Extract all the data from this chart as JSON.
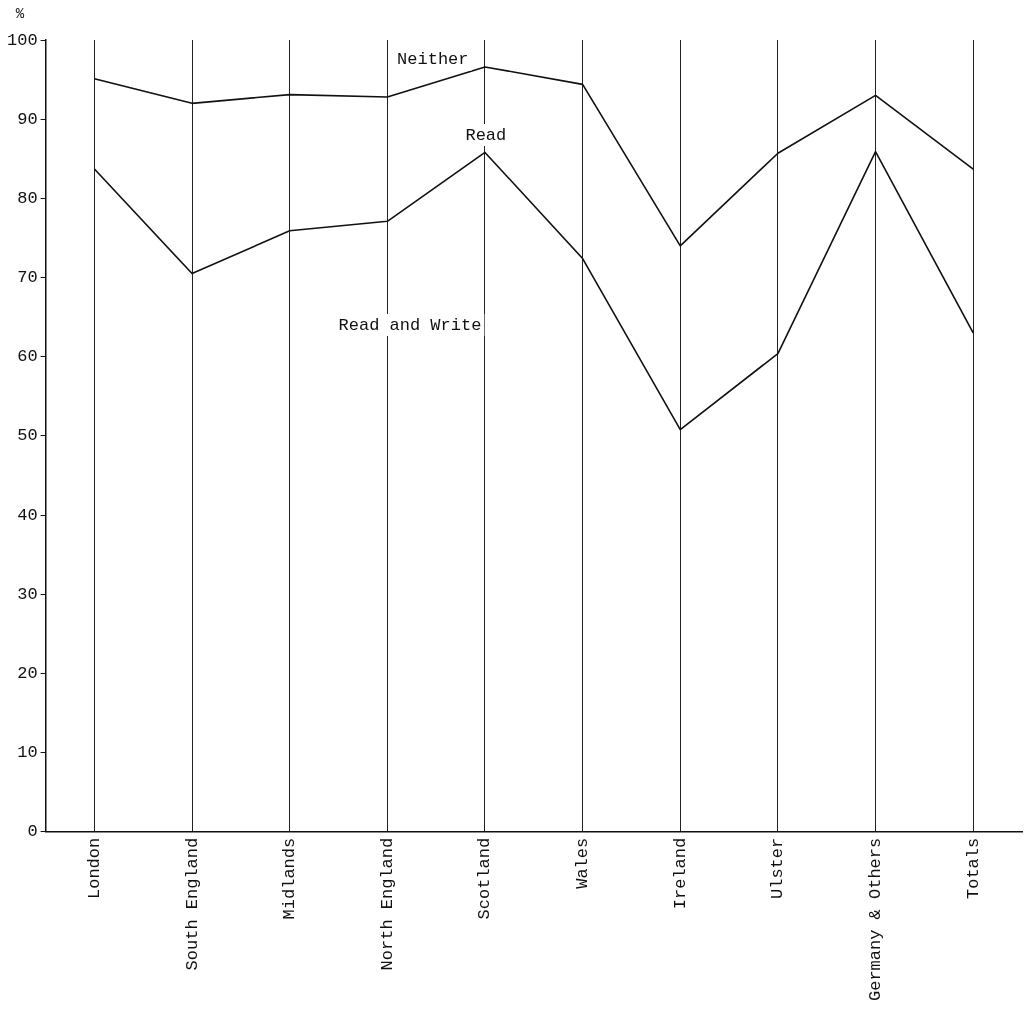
{
  "chart_data": {
    "type": "line",
    "ylabel": "%",
    "categories": [
      "London",
      "South England",
      "Midlands",
      "North England",
      "Scotland",
      "Wales",
      "Ireland",
      "Ulster",
      "Germany & Others",
      "Totals"
    ],
    "series": [
      {
        "color": "#111111",
        "values": [
          95.1,
          92,
          93.1,
          92.8,
          96.6,
          94.4,
          74,
          85.7,
          93,
          83.7
        ]
      },
      {
        "color": "#111111",
        "values": [
          83.7,
          70.5,
          75.9,
          77.1,
          85.8,
          72.4,
          50.8,
          60.4,
          85.9,
          63
        ]
      }
    ],
    "ylim": [
      0,
      100
    ],
    "yticks": [
      0,
      10,
      20,
      30,
      40,
      50,
      60,
      70,
      80,
      90,
      100
    ],
    "grid": "x",
    "marker": "none",
    "line_style": "solid",
    "annotations": [
      "Neither",
      "Read",
      "Read and Write"
    ]
  }
}
